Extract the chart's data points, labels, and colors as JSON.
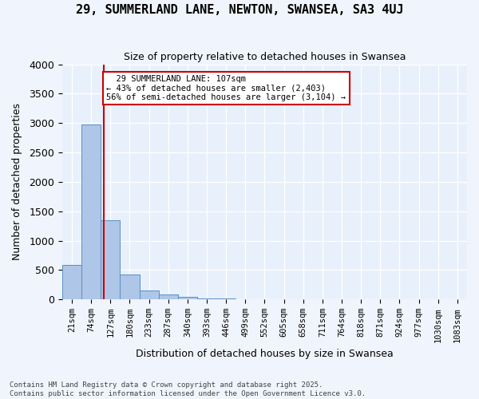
{
  "title": "29, SUMMERLAND LANE, NEWTON, SWANSEA, SA3 4UJ",
  "subtitle": "Size of property relative to detached houses in Swansea",
  "xlabel": "Distribution of detached houses by size in Swansea",
  "ylabel": "Number of detached properties",
  "footer_line1": "Contains HM Land Registry data © Crown copyright and database right 2025.",
  "footer_line2": "Contains public sector information licensed under the Open Government Licence v3.0.",
  "bin_labels": [
    "21sqm",
    "74sqm",
    "127sqm",
    "180sqm",
    "233sqm",
    "287sqm",
    "340sqm",
    "393sqm",
    "446sqm",
    "499sqm",
    "552sqm",
    "605sqm",
    "658sqm",
    "711sqm",
    "764sqm",
    "818sqm",
    "871sqm",
    "924sqm",
    "977sqm",
    "1030sqm",
    "1083sqm"
  ],
  "bar_values": [
    580,
    2970,
    1340,
    430,
    155,
    80,
    40,
    18,
    10,
    6,
    4,
    3,
    2,
    2,
    1,
    1,
    1,
    1,
    0,
    0,
    0
  ],
  "bar_color": "#aec6e8",
  "bar_edge_color": "#5a8fc4",
  "background_color": "#e8f0fb",
  "grid_color": "#ffffff",
  "property_label": "29 SUMMERLAND LANE: 107sqm",
  "pct_smaller": 43,
  "n_smaller": 2403,
  "pct_larger_semi": 56,
  "n_larger_semi": 3104,
  "red_line_x": 1.65,
  "annotation_box_color": "#ffffff",
  "annotation_box_edge": "#cc0000",
  "red_line_color": "#cc0000",
  "ylim": [
    0,
    4000
  ],
  "yticks": [
    0,
    500,
    1000,
    1500,
    2000,
    2500,
    3000,
    3500,
    4000
  ]
}
